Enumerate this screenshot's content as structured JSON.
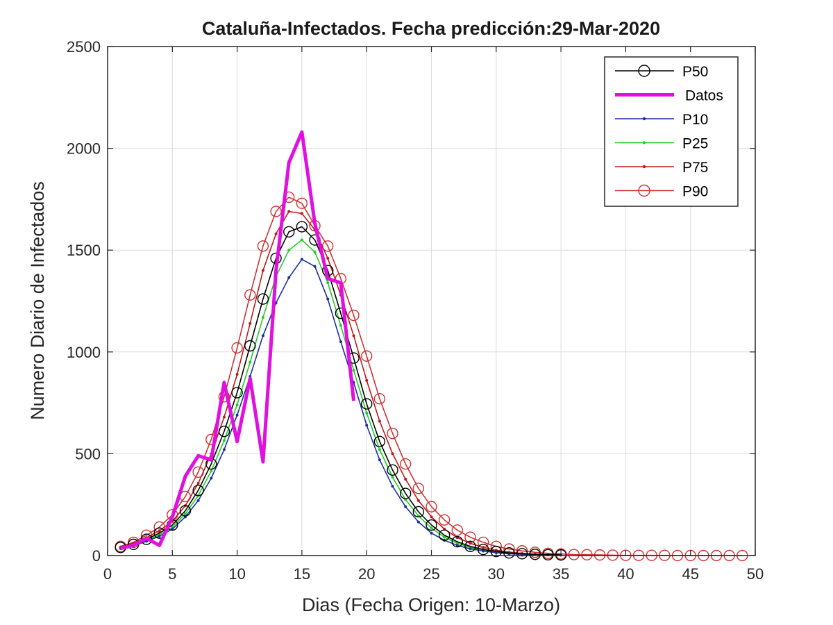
{
  "chart_data": {
    "type": "line",
    "title": "Cataluña-Infectados. Fecha predicción:29-Mar-2020",
    "xlabel": "Dias (Fecha Origen: 10-Marzo)",
    "ylabel": "Numero Diario de Infectados",
    "xlim": [
      0,
      50
    ],
    "ylim": [
      0,
      2500
    ],
    "xticks": [
      0,
      5,
      10,
      15,
      20,
      25,
      30,
      35,
      40,
      45,
      50
    ],
    "yticks": [
      0,
      500,
      1000,
      1500,
      2000,
      2500
    ],
    "grid": true,
    "legend_position": "top-right",
    "series": [
      {
        "name": "P50",
        "color": "#000000",
        "marker": "circle",
        "x": [
          1,
          2,
          3,
          4,
          5,
          6,
          7,
          8,
          9,
          10,
          11,
          12,
          13,
          14,
          15,
          16,
          17,
          18,
          19,
          20,
          21,
          22,
          23,
          24,
          25,
          26,
          27,
          28,
          29,
          30,
          31,
          32,
          33,
          34,
          35
        ],
        "y": [
          40,
          55,
          80,
          110,
          150,
          220,
          320,
          450,
          610,
          800,
          1030,
          1260,
          1460,
          1590,
          1615,
          1550,
          1400,
          1190,
          970,
          745,
          560,
          420,
          305,
          215,
          150,
          100,
          68,
          45,
          30,
          20,
          13,
          9,
          6,
          4,
          3
        ]
      },
      {
        "name": "Datos",
        "color": "#e010e0",
        "marker": "none",
        "x": [
          1,
          2,
          3,
          4,
          5,
          6,
          7,
          8,
          9,
          10,
          11,
          12,
          13,
          14,
          15,
          16,
          17,
          18,
          19
        ],
        "y": [
          35,
          50,
          85,
          50,
          190,
          390,
          490,
          470,
          850,
          560,
          870,
          460,
          1400,
          1930,
          2080,
          1630,
          1360,
          1340,
          760
        ]
      },
      {
        "name": "P10",
        "color": "#1a2fa0",
        "marker": "dot",
        "x": [
          1,
          2,
          3,
          4,
          5,
          6,
          7,
          8,
          9,
          10,
          11,
          12,
          13,
          14,
          15,
          16,
          17,
          18,
          19,
          20,
          21,
          22,
          23,
          24,
          25,
          26,
          27,
          28,
          29,
          30,
          31,
          32,
          33,
          34,
          35
        ],
        "y": [
          35,
          48,
          70,
          95,
          130,
          190,
          270,
          380,
          520,
          690,
          880,
          1080,
          1240,
          1365,
          1455,
          1420,
          1260,
          1050,
          850,
          640,
          470,
          340,
          240,
          165,
          110,
          75,
          50,
          33,
          22,
          14,
          9,
          6,
          4,
          3,
          2
        ]
      },
      {
        "name": "P25",
        "color": "#22cc22",
        "marker": "dot",
        "x": [
          1,
          2,
          3,
          4,
          5,
          6,
          7,
          8,
          9,
          10,
          11,
          12,
          13,
          14,
          15,
          16,
          17,
          18,
          19,
          20,
          21,
          22,
          23,
          24,
          25,
          26,
          27,
          28,
          29,
          30,
          31,
          32,
          33,
          34,
          35
        ],
        "y": [
          38,
          52,
          75,
          102,
          140,
          205,
          295,
          415,
          565,
          740,
          950,
          1170,
          1370,
          1500,
          1550,
          1490,
          1340,
          1130,
          910,
          700,
          520,
          385,
          275,
          195,
          135,
          90,
          60,
          40,
          27,
          18,
          12,
          8,
          5,
          3,
          2
        ]
      },
      {
        "name": "P75",
        "color": "#c01818",
        "marker": "dot",
        "x": [
          1,
          2,
          3,
          4,
          5,
          6,
          7,
          8,
          9,
          10,
          11,
          12,
          13,
          14,
          15,
          16,
          17,
          18,
          19,
          20,
          21,
          22,
          23,
          24,
          25,
          26,
          27,
          28,
          29,
          30,
          31,
          32,
          33,
          34,
          35
        ],
        "y": [
          42,
          60,
          88,
          122,
          168,
          245,
          355,
          500,
          680,
          890,
          1140,
          1400,
          1580,
          1690,
          1680,
          1600,
          1460,
          1280,
          1080,
          860,
          660,
          500,
          375,
          270,
          190,
          130,
          88,
          60,
          40,
          26,
          17,
          11,
          7,
          5,
          3
        ]
      },
      {
        "name": "P90",
        "color": "#d03030",
        "marker": "circle",
        "x": [
          1,
          2,
          3,
          4,
          5,
          6,
          7,
          8,
          9,
          10,
          11,
          12,
          13,
          14,
          15,
          16,
          17,
          18,
          19,
          20,
          21,
          22,
          23,
          24,
          25,
          26,
          27,
          28,
          29,
          30,
          31,
          32,
          33,
          34,
          35,
          36,
          37,
          38,
          39,
          40,
          41,
          42,
          43,
          44,
          45,
          46,
          47,
          48,
          49
        ],
        "y": [
          45,
          65,
          100,
          140,
          200,
          290,
          410,
          570,
          780,
          1020,
          1280,
          1520,
          1690,
          1760,
          1730,
          1620,
          1520,
          1360,
          1180,
          980,
          770,
          600,
          450,
          330,
          240,
          175,
          125,
          90,
          65,
          45,
          32,
          23,
          16,
          11,
          8,
          5,
          4,
          3,
          2,
          1,
          1,
          1,
          1,
          0,
          0,
          0,
          0,
          0,
          0
        ]
      }
    ]
  }
}
